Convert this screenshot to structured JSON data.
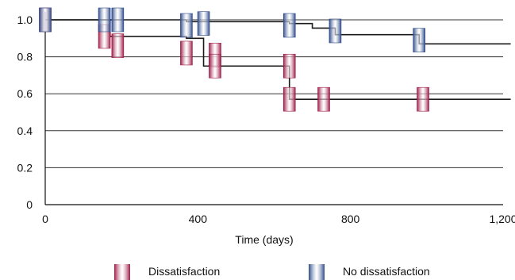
{
  "chart_data": {
    "type": "line",
    "title": "",
    "xlabel": "Time (days)",
    "ylabel": "",
    "xlim": [
      0,
      1200
    ],
    "ylim": [
      0,
      1.0
    ],
    "x_ticks": [
      0,
      400,
      800,
      1200
    ],
    "x_tick_labels": [
      "0",
      "400",
      "800",
      "1,200"
    ],
    "y_ticks": [
      0,
      0.2,
      0.4,
      0.6,
      0.8,
      1.0
    ],
    "y_tick_labels": [
      "0",
      "0.2",
      "0.4",
      "0.6",
      "0.8",
      "1.0"
    ],
    "grid": "horizontal",
    "legend_position": "bottom",
    "series": [
      {
        "name": "Dissatisfaction",
        "color": "#9e1a45",
        "steps": [
          [
            0,
            1.0
          ],
          [
            170,
            0.91
          ],
          [
            370,
            0.9
          ],
          [
            415,
            0.75
          ],
          [
            640,
            0.57
          ],
          [
            1220,
            0.57
          ]
        ],
        "markers": [
          [
            0,
            1.0
          ],
          [
            155,
            0.91
          ],
          [
            190,
            0.86
          ],
          [
            370,
            0.82
          ],
          [
            445,
            0.81
          ],
          [
            445,
            0.75
          ],
          [
            640,
            0.75
          ],
          [
            640,
            0.57
          ],
          [
            730,
            0.57
          ],
          [
            990,
            0.57
          ]
        ]
      },
      {
        "name": "No dissatisfaction",
        "color": "#2e4a8a",
        "steps": [
          [
            0,
            1.0
          ],
          [
            370,
            0.99
          ],
          [
            640,
            0.98
          ],
          [
            700,
            0.955
          ],
          [
            760,
            0.92
          ],
          [
            980,
            0.87
          ],
          [
            1220,
            0.87
          ]
        ],
        "markers": [
          [
            0,
            1.0
          ],
          [
            155,
            1.0
          ],
          [
            190,
            1.0
          ],
          [
            370,
            0.97
          ],
          [
            415,
            0.98
          ],
          [
            640,
            0.97
          ],
          [
            760,
            0.94
          ],
          [
            980,
            0.89
          ]
        ]
      }
    ]
  }
}
